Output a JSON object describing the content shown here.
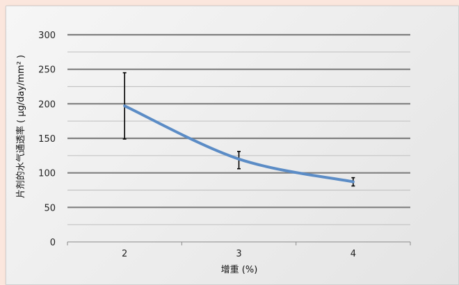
{
  "chart_data": {
    "type": "line",
    "title": "",
    "xlabel": "增重 (%)",
    "ylabel": "片剂的水气通透率 ( μg/day/mm² )",
    "categories": [
      "2",
      "3",
      "4"
    ],
    "series": [
      {
        "values": [
          197,
          120,
          87
        ],
        "error_low": [
          149,
          106,
          81
        ],
        "error_high": [
          245,
          131,
          93
        ],
        "color": "#5b8cc6"
      }
    ],
    "yticks": [
      "0",
      "50",
      "100",
      "150",
      "200",
      "250",
      "300"
    ],
    "ylim": [
      0,
      300
    ],
    "grid": true,
    "smooth": true
  }
}
